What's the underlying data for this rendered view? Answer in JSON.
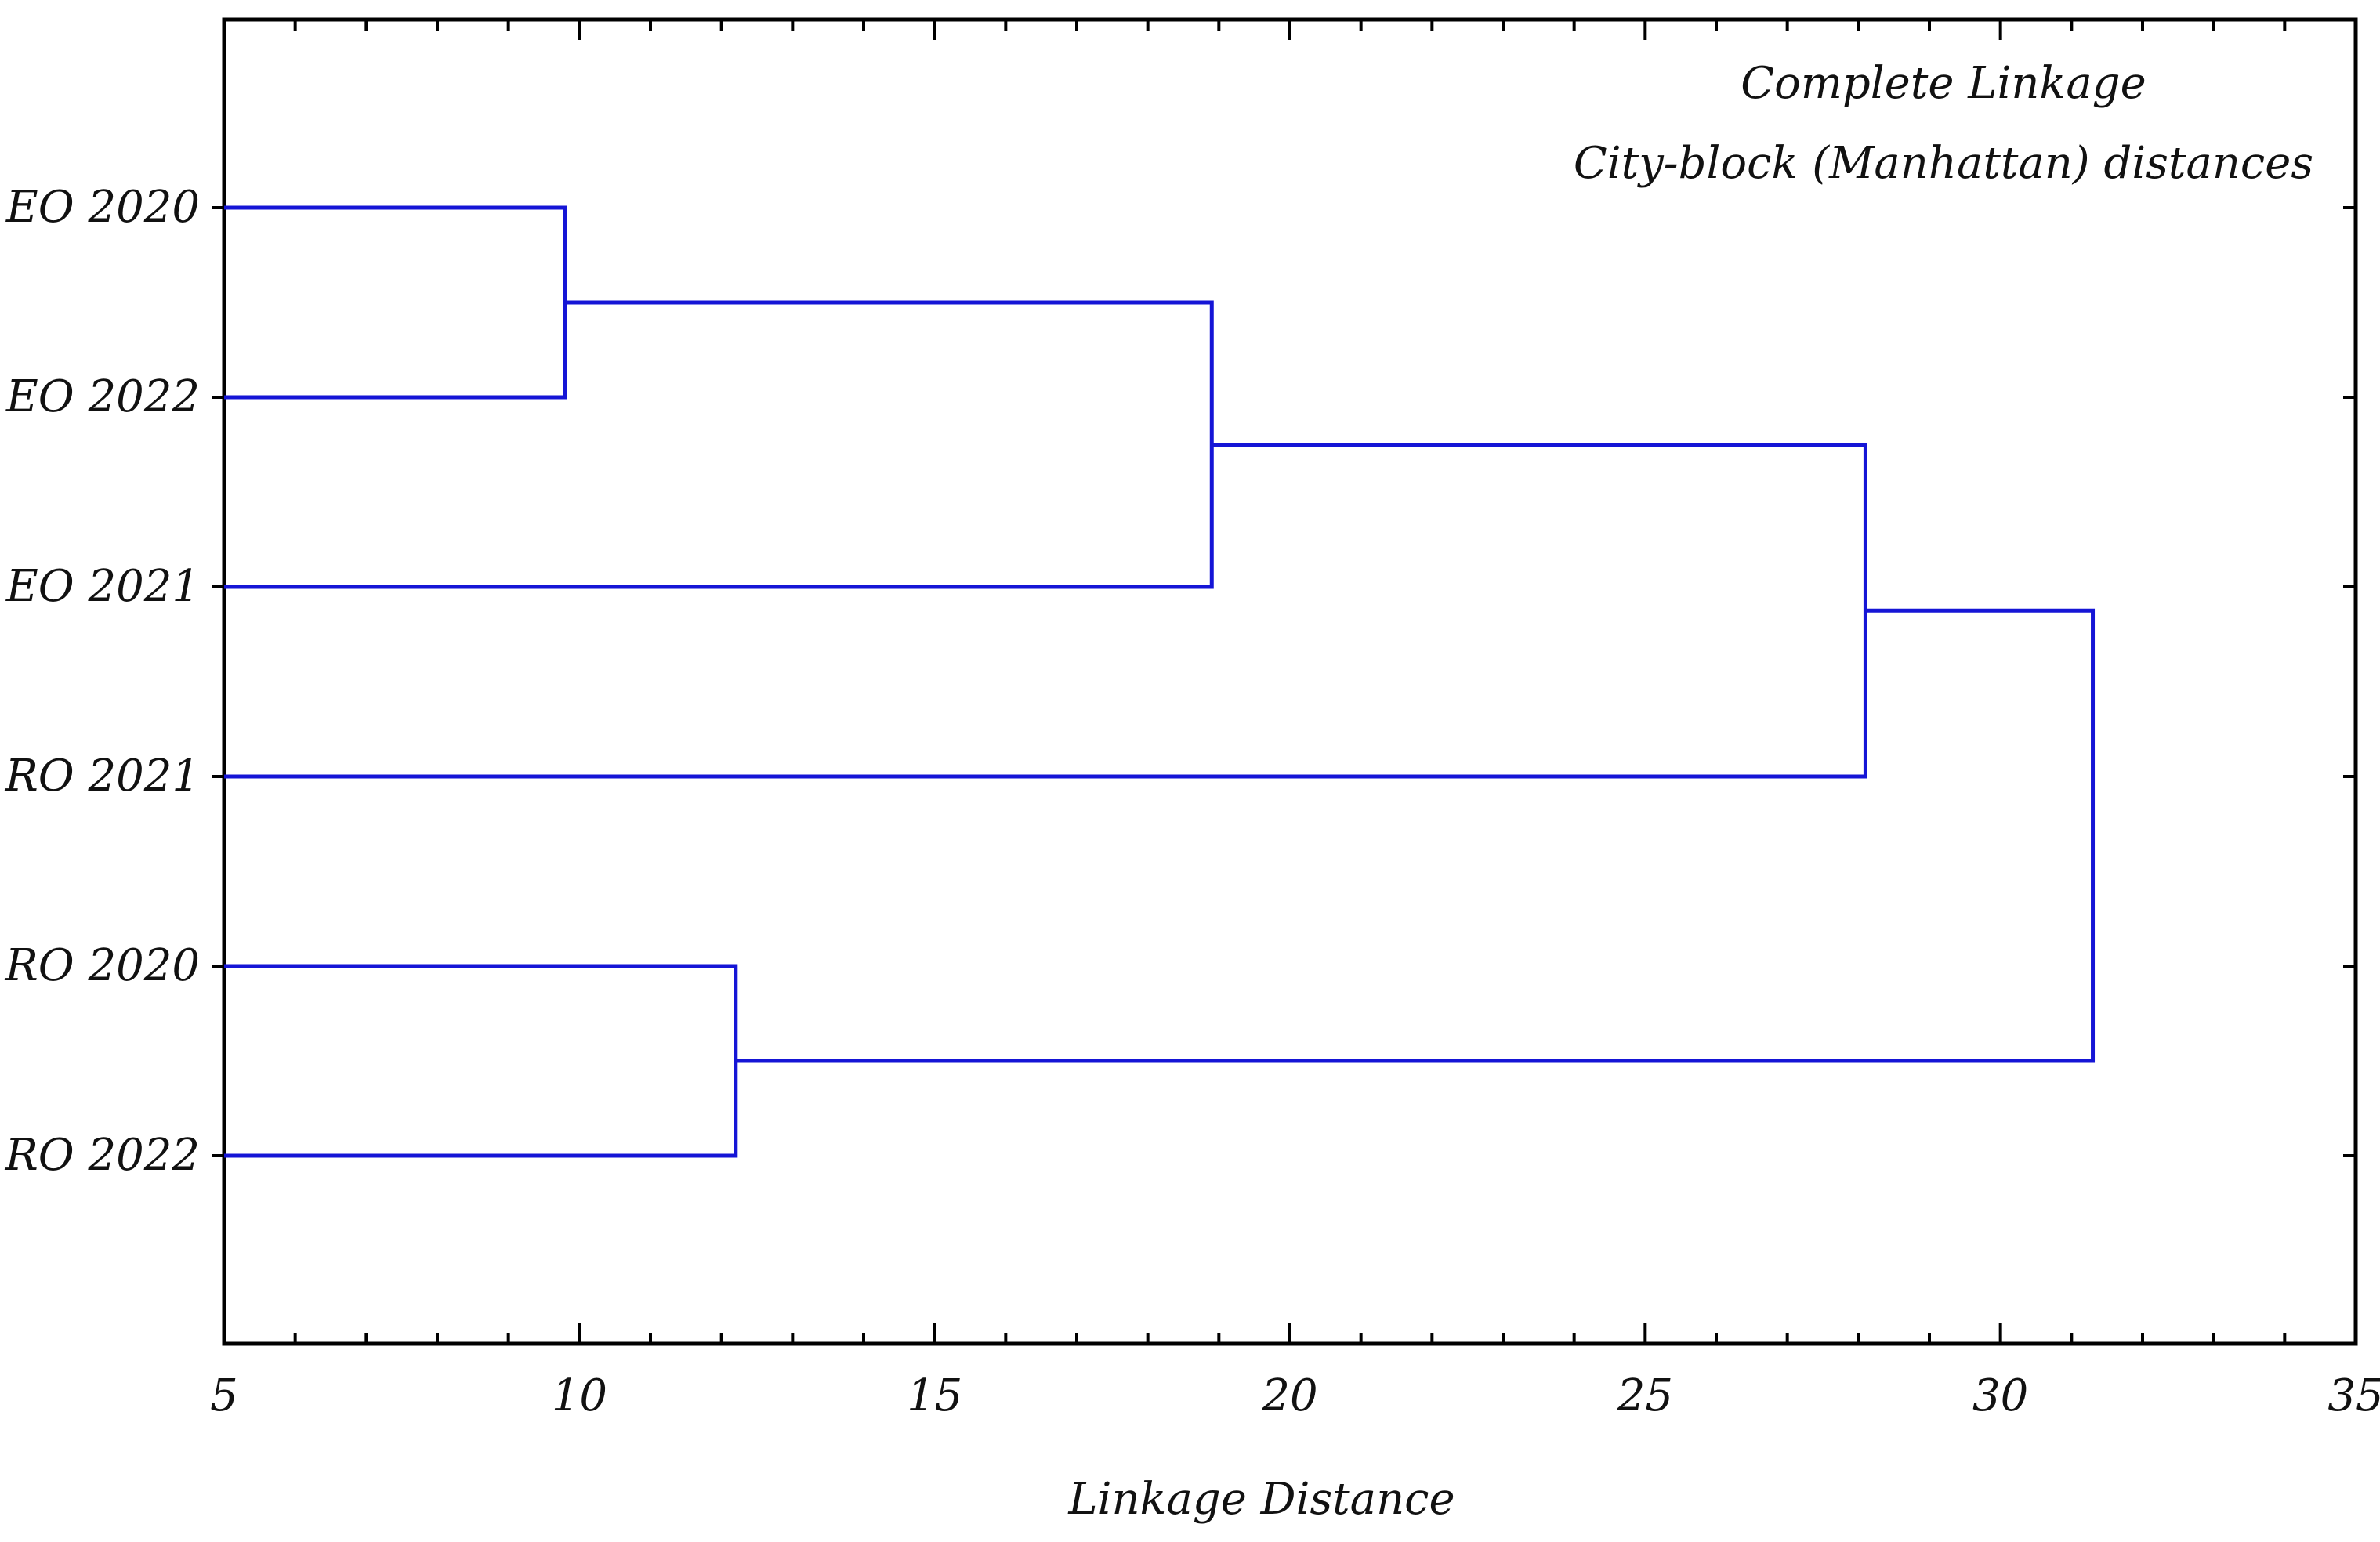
{
  "chart_data": {
    "type": "dendrogram",
    "annotations": [
      "Complete Linkage",
      "City-block (Manhattan) distances"
    ],
    "xlabel": "Linkage Distance",
    "ylabel": "",
    "xlim": [
      5,
      35
    ],
    "x_ticks": [
      5,
      10,
      15,
      20,
      25,
      30,
      35
    ],
    "x_tick_labels": [
      "5",
      "10",
      "15",
      "20",
      "25",
      "30",
      "35"
    ],
    "leaves": [
      "EO 2020",
      "EO 2022",
      "EO 2021",
      "RO 2021",
      "RO 2020",
      "RO 2022"
    ],
    "merges": [
      {
        "members": [
          "EO 2020",
          "EO 2022"
        ],
        "distance": 9.8
      },
      {
        "members": [
          "EO 2020",
          "EO 2022",
          "EO 2021"
        ],
        "distance": 18.9
      },
      {
        "members": [
          "EO 2020",
          "EO 2022",
          "EO 2021",
          "RO 2021"
        ],
        "distance": 28.1
      },
      {
        "members": [
          "RO 2020",
          "RO 2022"
        ],
        "distance": 12.2
      },
      {
        "members": [
          "EO 2020",
          "EO 2022",
          "EO 2021",
          "RO 2021",
          "RO 2020",
          "RO 2022"
        ],
        "distance": 31.3
      }
    ],
    "line_color": "#1515d6",
    "grid": false,
    "legend": "none"
  }
}
